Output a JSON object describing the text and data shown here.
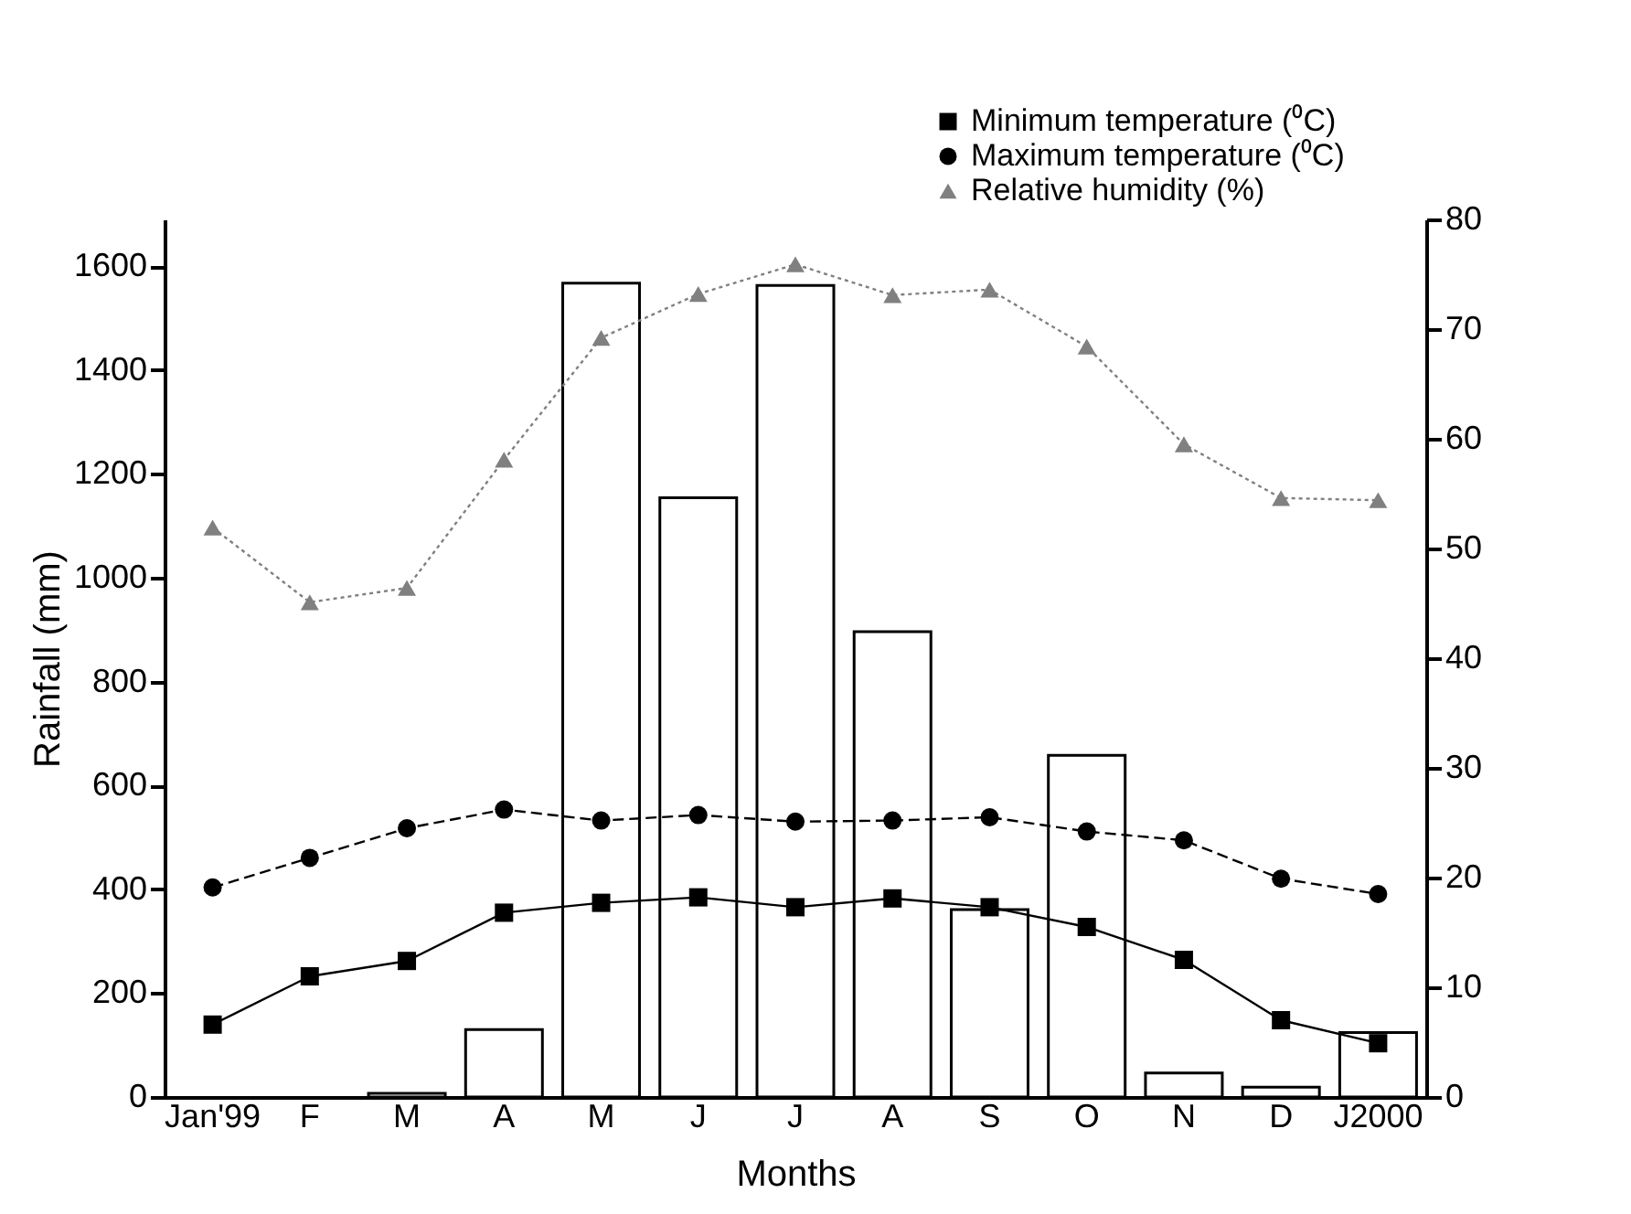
{
  "chart_data": {
    "type": "bar",
    "xlabel": "Months",
    "ylabel": "Rainfall (mm)",
    "categories": [
      "Jan'99",
      "F",
      "M",
      "A",
      "M",
      "J",
      "J",
      "A",
      "S",
      "O",
      "N",
      "D",
      "J2000"
    ],
    "series": [
      {
        "color": "#ffffff",
        "values": [
          0,
          0,
          7,
          130,
          1567,
          1154,
          1563,
          896,
          361,
          658,
          46,
          19,
          124
        ]
      },
      {
        "type": "line",
        "name": "Minimum temperature (⁰C)",
        "color": "#000000",
        "axis": "y2",
        "marker": "square",
        "line_style": "solid",
        "values": [
          6.6,
          11.0,
          12.4,
          16.8,
          17.7,
          18.2,
          17.3,
          18.1,
          17.3,
          15.5,
          12.5,
          7.0,
          4.9
        ]
      },
      {
        "type": "line",
        "name": "Maximum temperature (⁰C)",
        "color": "#000000",
        "axis": "y2",
        "marker": "circle",
        "line_style": "dashed",
        "values": [
          19.1,
          21.8,
          24.5,
          26.2,
          25.2,
          25.7,
          25.1,
          25.2,
          25.5,
          24.2,
          23.4,
          19.9,
          18.5
        ]
      },
      {
        "type": "line",
        "name": "Relative humidity (%)",
        "color": "#808080",
        "axis": "y2",
        "marker": "triangle",
        "line_style": "dotted",
        "values": [
          51.9,
          45.1,
          46.4,
          58.1,
          69.2,
          73.2,
          75.9,
          73.1,
          73.6,
          68.4,
          59.5,
          54.6,
          54.4
        ]
      }
    ],
    "ylim": [
      0,
      1690
    ],
    "yticks": [
      0,
      200,
      400,
      600,
      800,
      1000,
      1200,
      1400,
      1600
    ],
    "y2lim": [
      0,
      80
    ],
    "y2ticks": [
      0,
      10,
      20,
      30,
      40,
      50,
      60,
      70,
      80
    ],
    "grid": false,
    "legend": "top right"
  }
}
